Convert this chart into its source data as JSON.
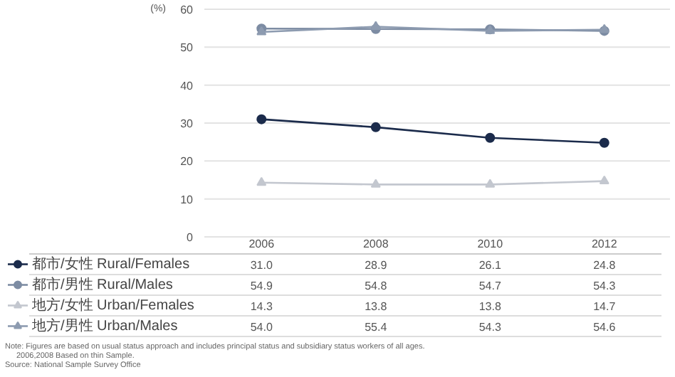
{
  "chart_data": {
    "type": "line",
    "ylabel": "(%)",
    "categories": [
      "2006",
      "2008",
      "2010",
      "2012"
    ],
    "series": [
      {
        "name": "都市/女性 Rural/Females",
        "color": "#1b2b4b",
        "marker": "circle",
        "values": [
          31.0,
          28.9,
          26.1,
          24.8
        ],
        "value_labels": [
          "31.0",
          "28.9",
          "26.1",
          "24.8"
        ]
      },
      {
        "name": "都市/男性 Rural/Males",
        "color": "#7d8ca3",
        "marker": "circle",
        "values": [
          54.9,
          54.8,
          54.7,
          54.3
        ],
        "value_labels": [
          "54.9",
          "54.8",
          "54.7",
          "54.3"
        ]
      },
      {
        "name": "地方/女性 Urban/Females",
        "color": "#c3c7cf",
        "marker": "triangle",
        "values": [
          14.3,
          13.8,
          13.8,
          14.7
        ],
        "value_labels": [
          "14.3",
          "13.8",
          "13.8",
          "14.7"
        ]
      },
      {
        "name": "地方/男性 Urban/Males",
        "color": "#8d9bb0",
        "marker": "triangle",
        "values": [
          54.0,
          55.4,
          54.3,
          54.6
        ],
        "value_labels": [
          "54.0",
          "55.4",
          "54.3",
          "54.6"
        ]
      }
    ],
    "ylim": [
      0,
      60
    ],
    "yticks": [
      0,
      10,
      20,
      30,
      40,
      50,
      60
    ],
    "grid": "y",
    "legend": "bottom",
    "annotations": [
      "Note: Figures are based on usual status approach and includes principal status and subsidiary status workers of all ages.",
      "2006,2008 Based on thin Sample.",
      "Source: National Sample Survey Office"
    ]
  }
}
